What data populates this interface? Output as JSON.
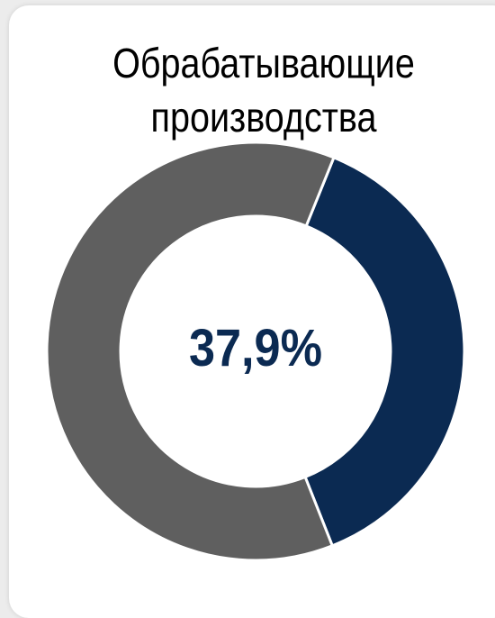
{
  "chart_data": {
    "type": "pie",
    "variant": "donut",
    "title_lines": [
      "Обрабатывающие",
      "производства"
    ],
    "center_label": "37,9%",
    "slices": [
      {
        "value": 37.9,
        "color": "#0b2a52"
      },
      {
        "value": 62.1,
        "color": "#5f5f5f"
      }
    ]
  },
  "colors": {
    "accent": "#0b2a52",
    "remainder": "#5f5f5f",
    "background": "#ffffff"
  }
}
